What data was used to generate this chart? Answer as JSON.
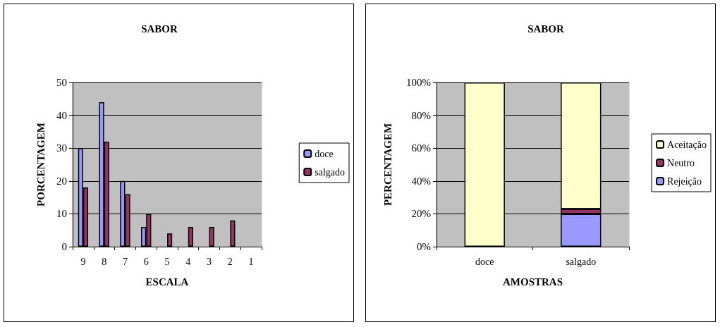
{
  "chart_data": [
    {
      "type": "bar",
      "title": "SABOR",
      "xlabel": "ESCALA",
      "ylabel": "PORCENTAGEM",
      "categories": [
        "9",
        "8",
        "7",
        "6",
        "5",
        "4",
        "3",
        "2",
        "1"
      ],
      "series": [
        {
          "name": "doce",
          "color": "#9999ff",
          "values": [
            30,
            44,
            20,
            6,
            null,
            null,
            null,
            null,
            null
          ]
        },
        {
          "name": "salgado",
          "color": "#993366",
          "values": [
            18,
            32,
            16,
            10,
            4,
            6,
            6,
            8,
            null
          ]
        }
      ],
      "ylim": [
        0,
        50
      ],
      "yticks": [
        0,
        10,
        20,
        30,
        40,
        50
      ],
      "grid": "y",
      "legend": "right"
    },
    {
      "type": "bar",
      "title": "SABOR",
      "xlabel": "AMOSTRAS",
      "ylabel": "PERCENTAGEM",
      "categories": [
        "doce",
        "salgado"
      ],
      "stacked": true,
      "series": [
        {
          "name": "Rejeição",
          "color": "#9999ff",
          "values": [
            null,
            20
          ]
        },
        {
          "name": "Neutro",
          "color": "#993366",
          "values": [
            null,
            3
          ]
        },
        {
          "name": "Aceitação",
          "color": "#ffffcc",
          "values": [
            100,
            77
          ]
        }
      ],
      "ylim": [
        0,
        100
      ],
      "yticks": [
        {
          "value": 0,
          "label": "0%"
        },
        {
          "value": 20,
          "label": "20%"
        },
        {
          "value": 40,
          "label": "40%"
        },
        {
          "value": 60,
          "label": "60%"
        },
        {
          "value": 80,
          "label": "80%"
        },
        {
          "value": 100,
          "label": "100%"
        }
      ],
      "grid": "y",
      "legend": "right"
    }
  ]
}
